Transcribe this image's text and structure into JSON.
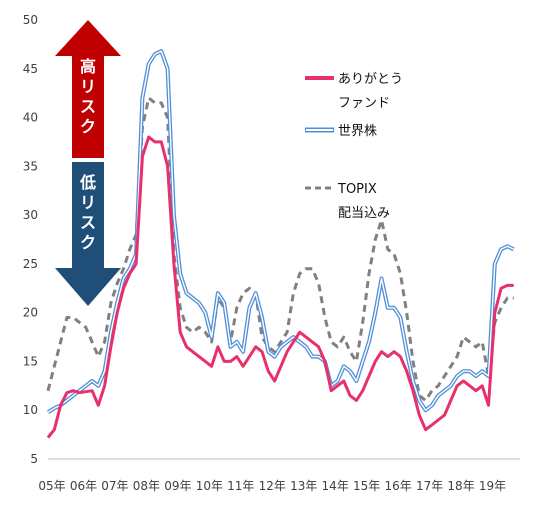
{
  "chart_data": {
    "type": "line",
    "title": "",
    "xlabel": "",
    "ylabel": "",
    "ylim": [
      5,
      50
    ],
    "y_ticks": [
      "5",
      "10",
      "15",
      "20",
      "25",
      "30",
      "35",
      "40",
      "45",
      "50"
    ],
    "x_ticks": [
      "05年",
      "06年",
      "07年",
      "08年",
      "09年",
      "10年",
      "11年",
      "12年",
      "13年",
      "14年",
      "15年",
      "16年",
      "17年",
      "18年",
      "19年"
    ],
    "x_range": [
      2005.0,
      2020.0
    ],
    "grid": false,
    "legend_position": "right",
    "risk_labels": {
      "high": "高リスク",
      "low": "低リスク"
    },
    "series": [
      {
        "name": "ありがとうファンド",
        "color": "#e8306a",
        "style": "solid",
        "x": [
          2005.0,
          2005.2,
          2005.4,
          2005.6,
          2005.8,
          2006.0,
          2006.2,
          2006.4,
          2006.6,
          2006.8,
          2007.0,
          2007.2,
          2007.4,
          2007.6,
          2007.8,
          2008.0,
          2008.2,
          2008.4,
          2008.6,
          2008.8,
          2009.0,
          2009.2,
          2009.4,
          2009.6,
          2009.8,
          2010.0,
          2010.2,
          2010.4,
          2010.6,
          2010.8,
          2011.0,
          2011.2,
          2011.4,
          2011.6,
          2011.8,
          2012.0,
          2012.2,
          2012.4,
          2012.6,
          2012.8,
          2013.0,
          2013.2,
          2013.4,
          2013.6,
          2013.8,
          2014.0,
          2014.2,
          2014.4,
          2014.6,
          2014.8,
          2015.0,
          2015.2,
          2015.4,
          2015.6,
          2015.8,
          2016.0,
          2016.2,
          2016.4,
          2016.6,
          2016.8,
          2017.0,
          2017.2,
          2017.4,
          2017.6,
          2017.8,
          2018.0,
          2018.2,
          2018.4,
          2018.6,
          2018.8,
          2019.0,
          2019.2,
          2019.4,
          2019.6,
          2019.8
        ],
        "values": [
          7.2,
          8.0,
          10.5,
          11.8,
          12.0,
          11.8,
          11.9,
          12.0,
          10.5,
          12.5,
          16.5,
          20.0,
          22.5,
          24.0,
          25.0,
          36.0,
          38.0,
          37.5,
          37.5,
          35.0,
          25.0,
          18.0,
          16.5,
          16.0,
          15.5,
          15.0,
          14.5,
          16.5,
          15.0,
          15.0,
          15.5,
          14.5,
          15.5,
          16.5,
          16.0,
          14.0,
          13.0,
          14.5,
          16.0,
          17.0,
          18.0,
          17.5,
          17.0,
          16.5,
          15.0,
          12.0,
          12.5,
          13.0,
          11.5,
          11.0,
          12.0,
          13.5,
          15.0,
          16.0,
          15.5,
          16.0,
          15.5,
          14.0,
          12.0,
          9.5,
          8.0,
          8.5,
          9.0,
          9.5,
          11.0,
          12.5,
          13.0,
          12.5,
          12.0,
          12.5,
          10.5,
          20.0,
          22.5,
          22.8,
          22.8
        ]
      },
      {
        "name": "世界株",
        "color": "#4f8fd8",
        "style": "double",
        "x": [
          2005.0,
          2005.2,
          2005.4,
          2005.6,
          2005.8,
          2006.0,
          2006.2,
          2006.4,
          2006.6,
          2006.8,
          2007.0,
          2007.2,
          2007.4,
          2007.6,
          2007.8,
          2008.0,
          2008.2,
          2008.4,
          2008.6,
          2008.8,
          2009.0,
          2009.2,
          2009.4,
          2009.6,
          2009.8,
          2010.0,
          2010.2,
          2010.4,
          2010.6,
          2010.8,
          2011.0,
          2011.2,
          2011.4,
          2011.6,
          2011.8,
          2012.0,
          2012.2,
          2012.4,
          2012.6,
          2012.8,
          2013.0,
          2013.2,
          2013.4,
          2013.6,
          2013.8,
          2014.0,
          2014.2,
          2014.4,
          2014.6,
          2014.8,
          2015.0,
          2015.2,
          2015.4,
          2015.6,
          2015.8,
          2016.0,
          2016.2,
          2016.4,
          2016.6,
          2016.8,
          2017.0,
          2017.2,
          2017.4,
          2017.6,
          2017.8,
          2018.0,
          2018.2,
          2018.4,
          2018.6,
          2018.8,
          2019.0,
          2019.2,
          2019.4,
          2019.6,
          2019.8
        ],
        "values": [
          9.8,
          10.2,
          10.5,
          11.0,
          11.5,
          12.0,
          12.5,
          13.0,
          12.5,
          14.0,
          18.0,
          21.0,
          23.5,
          24.5,
          26.0,
          42.0,
          45.5,
          46.5,
          46.8,
          45.0,
          30.0,
          24.0,
          22.0,
          21.5,
          21.0,
          20.0,
          17.5,
          22.0,
          21.0,
          16.5,
          17.0,
          16.0,
          20.5,
          22.0,
          19.5,
          16.0,
          15.5,
          16.5,
          17.0,
          17.5,
          17.0,
          16.5,
          15.5,
          15.5,
          15.0,
          12.5,
          13.0,
          14.5,
          14.0,
          13.0,
          15.0,
          17.0,
          20.0,
          23.5,
          20.5,
          20.5,
          19.5,
          16.0,
          13.0,
          11.0,
          10.0,
          10.5,
          11.5,
          12.0,
          12.5,
          13.5,
          14.0,
          14.0,
          13.5,
          14.0,
          13.5,
          25.0,
          26.5,
          26.8,
          26.5
        ]
      },
      {
        "name": "TOPIX 配当込み",
        "color": "#808080",
        "style": "dashed",
        "x": [
          2005.0,
          2005.2,
          2005.4,
          2005.6,
          2005.8,
          2006.0,
          2006.2,
          2006.4,
          2006.6,
          2006.8,
          2007.0,
          2007.2,
          2007.4,
          2007.6,
          2007.8,
          2008.0,
          2008.2,
          2008.4,
          2008.6,
          2008.8,
          2009.0,
          2009.2,
          2009.4,
          2009.6,
          2009.8,
          2010.0,
          2010.2,
          2010.4,
          2010.6,
          2010.8,
          2011.0,
          2011.2,
          2011.4,
          2011.6,
          2011.8,
          2012.0,
          2012.2,
          2012.4,
          2012.6,
          2012.8,
          2013.0,
          2013.2,
          2013.4,
          2013.6,
          2013.8,
          2014.0,
          2014.2,
          2014.4,
          2014.6,
          2014.8,
          2015.0,
          2015.2,
          2015.4,
          2015.6,
          2015.8,
          2016.0,
          2016.2,
          2016.4,
          2016.6,
          2016.8,
          2017.0,
          2017.2,
          2017.4,
          2017.6,
          2017.8,
          2018.0,
          2018.2,
          2018.4,
          2018.6,
          2018.8,
          2019.0,
          2019.2,
          2019.4,
          2019.6,
          2019.8
        ],
        "values": [
          12.0,
          14.5,
          17.0,
          19.5,
          19.5,
          19.0,
          18.5,
          17.0,
          15.5,
          17.0,
          21.0,
          23.0,
          24.5,
          26.5,
          28.0,
          39.0,
          42.0,
          41.5,
          41.5,
          40.0,
          26.0,
          20.5,
          18.5,
          18.0,
          18.5,
          18.0,
          17.0,
          21.5,
          20.5,
          17.0,
          20.5,
          22.0,
          22.5,
          22.0,
          17.5,
          16.5,
          16.0,
          17.0,
          18.0,
          22.0,
          24.0,
          24.5,
          24.5,
          23.0,
          19.5,
          17.0,
          16.5,
          17.5,
          16.0,
          15.0,
          19.0,
          24.0,
          27.5,
          29.5,
          26.5,
          26.0,
          24.0,
          20.0,
          15.0,
          11.5,
          11.0,
          12.0,
          12.5,
          13.5,
          14.5,
          15.5,
          17.5,
          17.0,
          16.5,
          17.0,
          13.5,
          19.0,
          20.5,
          21.5,
          21.5
        ]
      }
    ]
  }
}
